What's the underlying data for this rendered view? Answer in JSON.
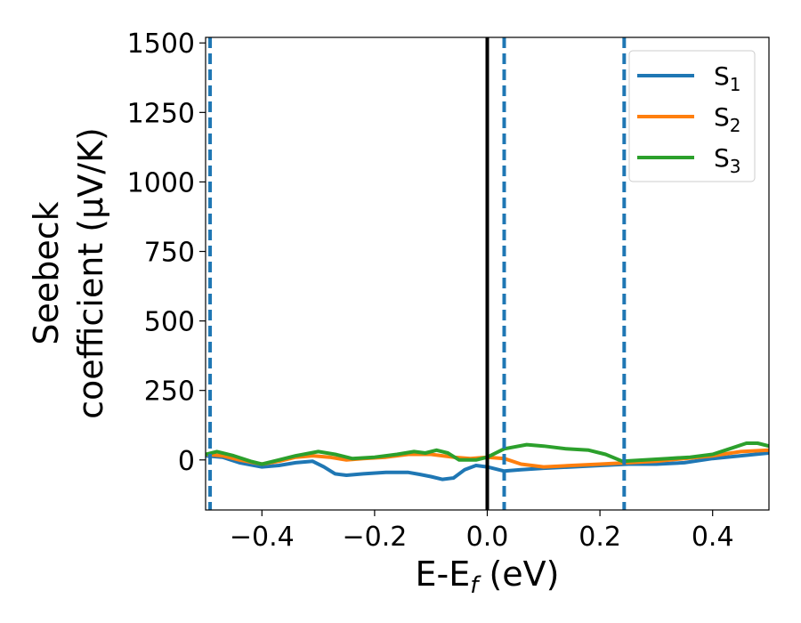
{
  "chart_data": {
    "type": "line",
    "xlabel_main": "E-E",
    "xlabel_sub": "f",
    "xlabel_unit": " (eV)",
    "ylabel_line1": "Seebeck",
    "ylabel_line2": "coefficient  (μV/K)",
    "xlim": [
      -0.5,
      0.5
    ],
    "ylim": [
      -180,
      1520
    ],
    "xticks": [
      -0.4,
      -0.2,
      0.0,
      0.2,
      0.4
    ],
    "xtick_labels": [
      "−0.4",
      "−0.2",
      "0.0",
      "0.2",
      "0.4"
    ],
    "yticks": [
      0,
      250,
      500,
      750,
      1000,
      1250,
      1500
    ],
    "ytick_labels": [
      "0",
      "250",
      "500",
      "750",
      "1000",
      "1250",
      "1500"
    ],
    "grid": false,
    "legend_position": "top-right",
    "vertical_lines": [
      {
        "x": 0.0,
        "color": "#000000",
        "style": "solid"
      },
      {
        "x": -0.492,
        "color": "#1f77b4",
        "style": "dashed"
      },
      {
        "x": 0.03,
        "color": "#1f77b4",
        "style": "dashed"
      },
      {
        "x": 0.243,
        "color": "#1f77b4",
        "style": "dashed"
      }
    ],
    "series": [
      {
        "name": "S",
        "sub": "1",
        "color": "#1f77b4",
        "x": [
          -0.5,
          -0.47,
          -0.44,
          -0.4,
          -0.37,
          -0.34,
          -0.31,
          -0.29,
          -0.27,
          -0.25,
          -0.22,
          -0.18,
          -0.14,
          -0.12,
          -0.1,
          -0.08,
          -0.06,
          -0.04,
          -0.02,
          0.0,
          0.03,
          0.06,
          0.1,
          0.15,
          0.2,
          0.25,
          0.3,
          0.35,
          0.4,
          0.45,
          0.5
        ],
        "y": [
          15,
          10,
          -10,
          -25,
          -20,
          -10,
          -5,
          -25,
          -50,
          -55,
          -50,
          -45,
          -45,
          -52,
          -60,
          -70,
          -65,
          -35,
          -20,
          -25,
          -40,
          -35,
          -30,
          -25,
          -20,
          -15,
          -15,
          -10,
          5,
          15,
          25
        ]
      },
      {
        "name": "S",
        "sub": "2",
        "color": "#ff7f0e",
        "x": [
          -0.5,
          -0.47,
          -0.44,
          -0.4,
          -0.37,
          -0.34,
          -0.31,
          -0.28,
          -0.25,
          -0.22,
          -0.18,
          -0.14,
          -0.1,
          -0.06,
          -0.03,
          0.0,
          0.03,
          0.06,
          0.1,
          0.15,
          0.2,
          0.25,
          0.3,
          0.35,
          0.4,
          0.45,
          0.5
        ],
        "y": [
          20,
          15,
          0,
          -15,
          -5,
          10,
          15,
          10,
          0,
          5,
          10,
          20,
          20,
          10,
          5,
          10,
          5,
          -15,
          -25,
          -20,
          -15,
          -10,
          -5,
          5,
          15,
          30,
          35
        ]
      },
      {
        "name": "S",
        "sub": "3",
        "color": "#2ca02c",
        "x": [
          -0.5,
          -0.48,
          -0.45,
          -0.42,
          -0.4,
          -0.37,
          -0.34,
          -0.3,
          -0.27,
          -0.24,
          -0.2,
          -0.16,
          -0.13,
          -0.11,
          -0.09,
          -0.07,
          -0.05,
          -0.02,
          0.0,
          0.03,
          0.07,
          0.1,
          0.14,
          0.18,
          0.21,
          0.24,
          0.28,
          0.32,
          0.36,
          0.4,
          0.43,
          0.46,
          0.48,
          0.5
        ],
        "y": [
          20,
          30,
          15,
          -5,
          -15,
          0,
          15,
          30,
          20,
          5,
          10,
          20,
          30,
          25,
          35,
          25,
          0,
          0,
          10,
          40,
          55,
          50,
          40,
          35,
          20,
          -5,
          0,
          5,
          10,
          20,
          40,
          60,
          60,
          50
        ]
      }
    ]
  }
}
